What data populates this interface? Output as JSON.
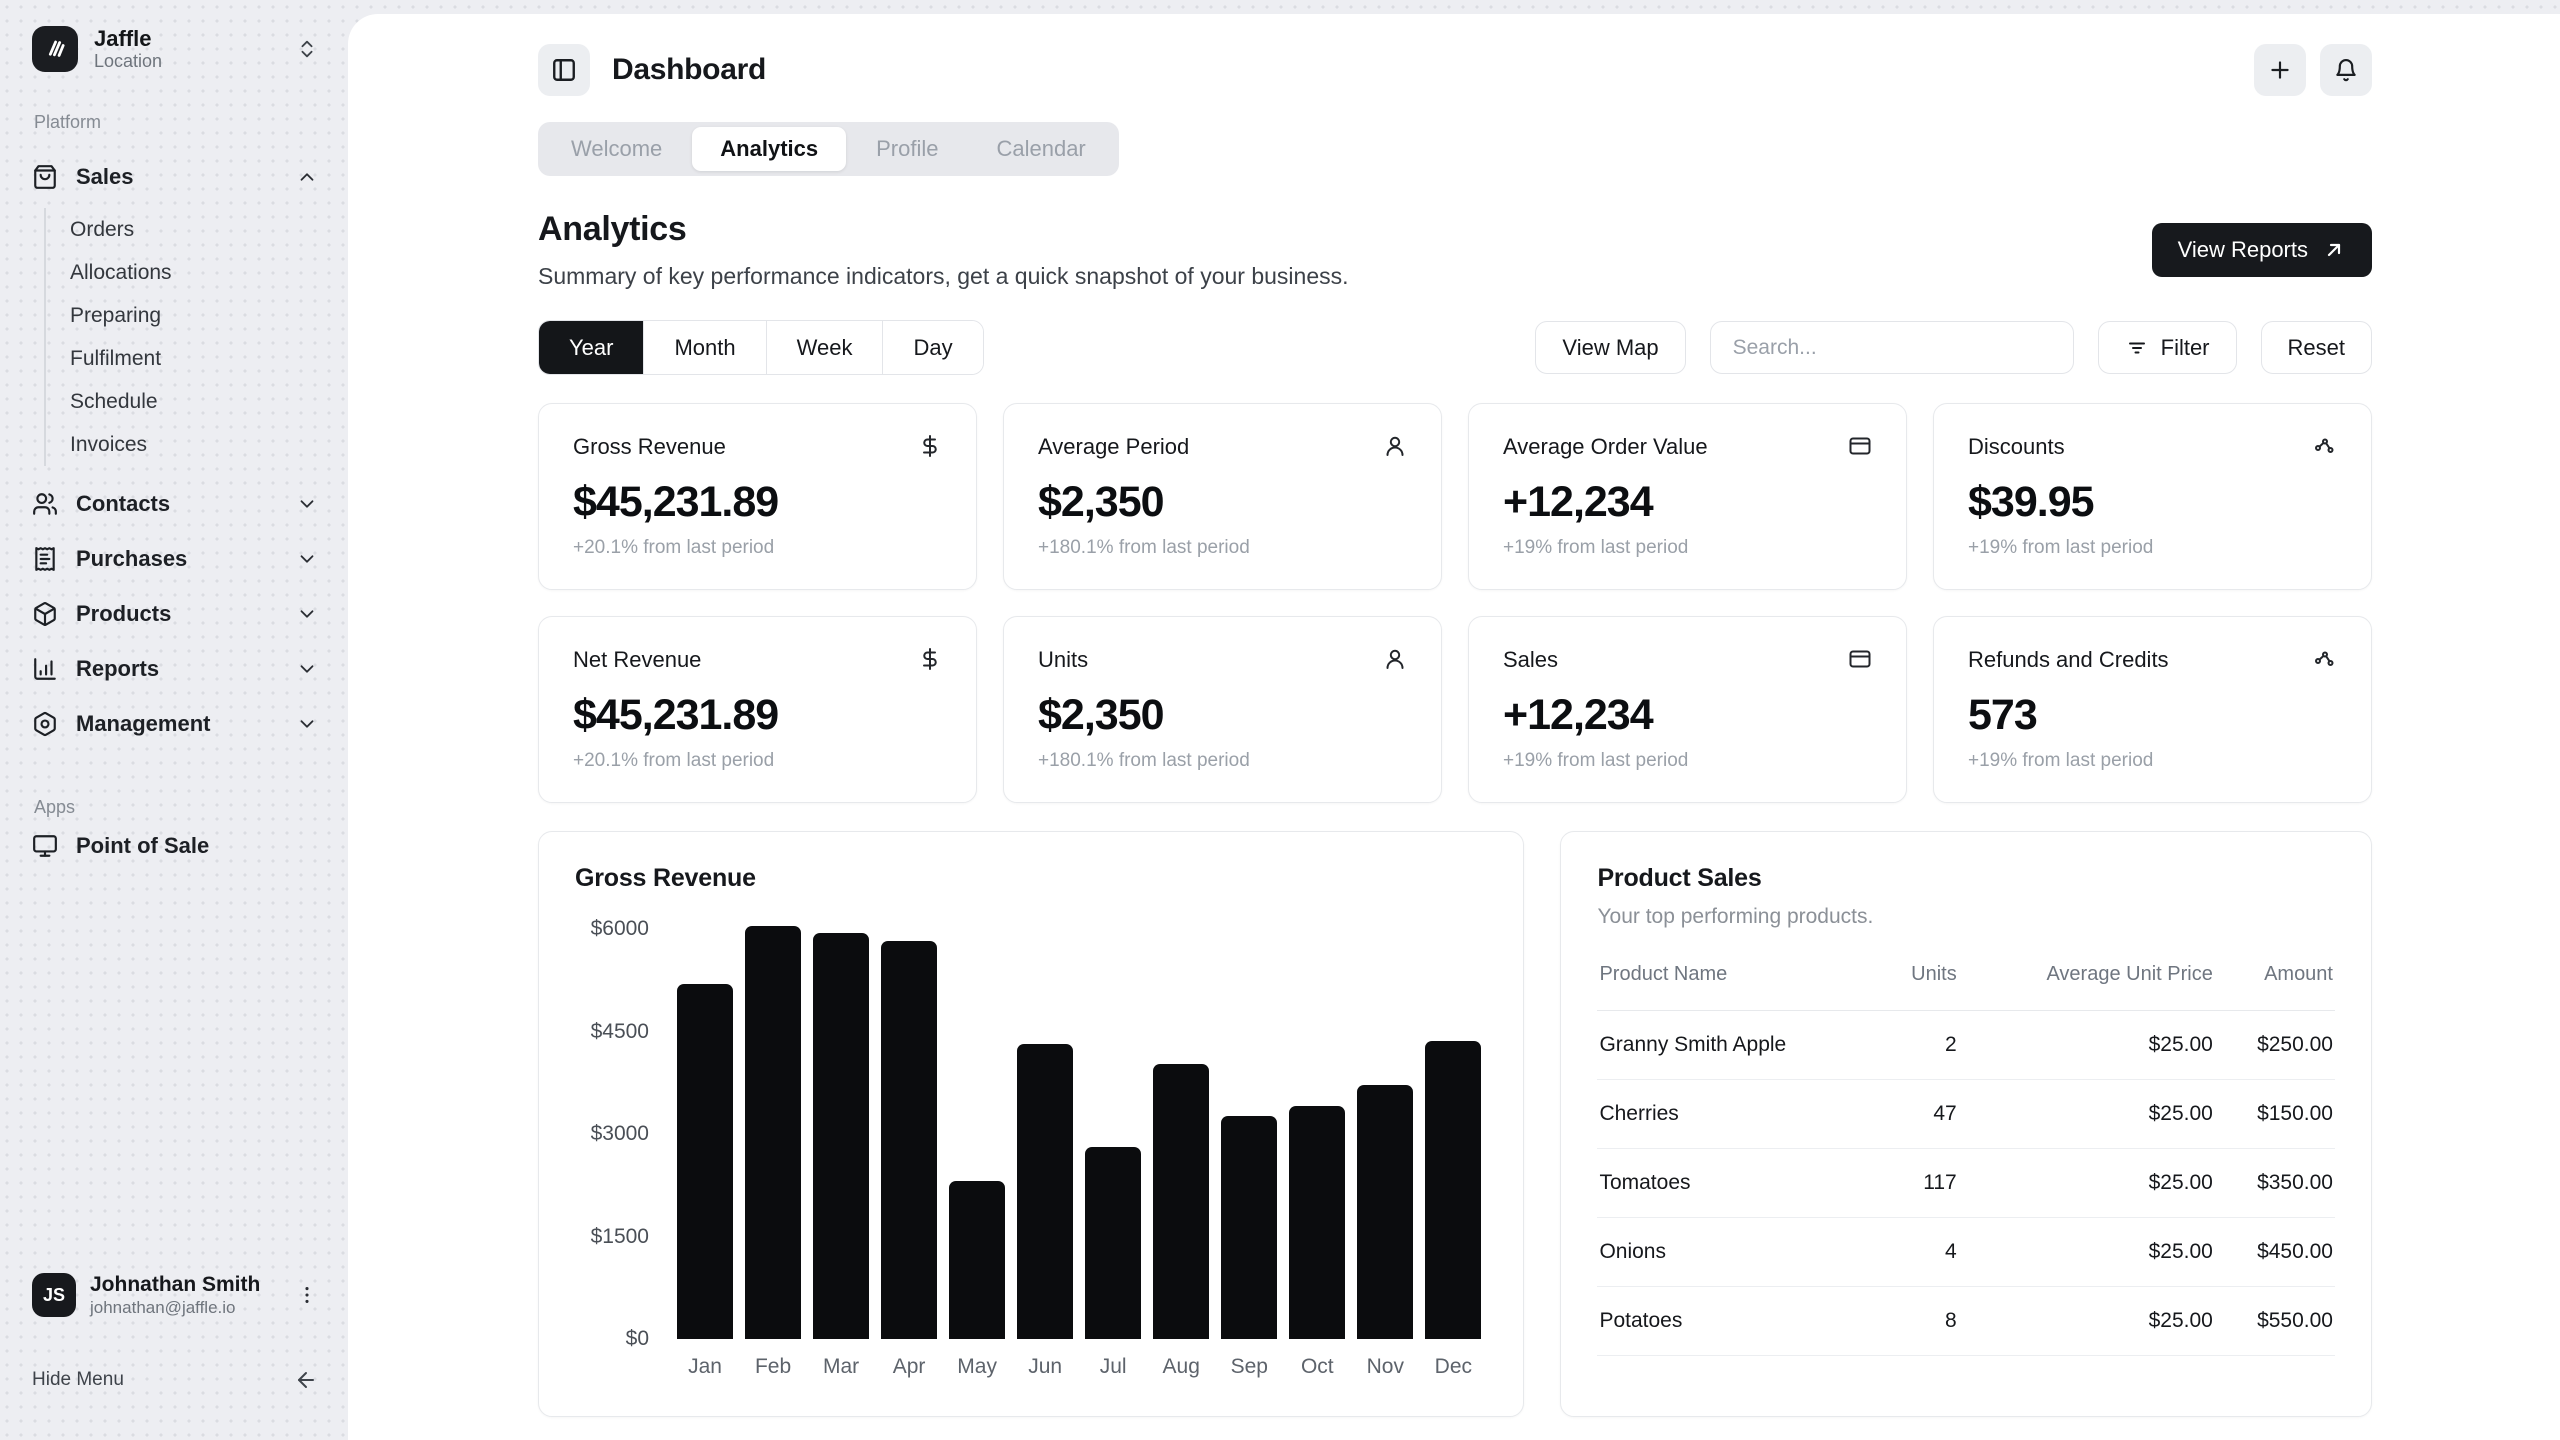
{
  "colors": {
    "accent": "#141619",
    "bar": "#0b0c0e",
    "muted": "#9aa0a8",
    "sidebar_bg": "#edeef2"
  },
  "sidebar": {
    "org": {
      "name": "Jaffle",
      "sub": "Location",
      "logo_icon": "jaffle-logo-icon",
      "switcher_icon": "chevrons-up-down-icon"
    },
    "platform_label": "Platform",
    "sales": {
      "label": "Sales",
      "icon": "shopping-bag-icon",
      "state_icon": "chevron-up-icon",
      "items": [
        "Orders",
        "Allocations",
        "Preparing",
        "Fulfilment",
        "Schedule",
        "Invoices"
      ]
    },
    "menu": [
      {
        "label": "Contacts",
        "icon": "users-icon"
      },
      {
        "label": "Purchases",
        "icon": "receipt-icon"
      },
      {
        "label": "Products",
        "icon": "package-icon"
      },
      {
        "label": "Reports",
        "icon": "chart-column-icon"
      },
      {
        "label": "Management",
        "icon": "cog-icon"
      }
    ],
    "apps_label": "Apps",
    "apps": [
      {
        "label": "Point of Sale",
        "icon": "monitor-icon"
      }
    ],
    "user": {
      "initials": "JS",
      "name": "Johnathan Smith",
      "email": "johnathan@jaffle.io",
      "menu_icon": "ellipsis-vertical-icon"
    },
    "hide_menu": "Hide Menu"
  },
  "header": {
    "title": "Dashboard",
    "toggle_icon": "panel-left-icon",
    "actions": [
      {
        "icon": "plus-icon"
      },
      {
        "icon": "bell-icon"
      }
    ],
    "tabs": [
      "Welcome",
      "Analytics",
      "Profile",
      "Calendar"
    ],
    "active_tab": "Analytics"
  },
  "analytics": {
    "title": "Analytics",
    "subtitle": "Summary of key performance indicators, get a quick snapshot of your business.",
    "view_reports_label": "View Reports",
    "view_reports_icon": "arrow-up-right-icon"
  },
  "filters": {
    "periods": [
      "Year",
      "Month",
      "Week",
      "Day"
    ],
    "active_period": "Year",
    "view_map_label": "View Map",
    "search_placeholder": "Search...",
    "filter_label": "Filter",
    "filter_icon": "filter-lines-icon",
    "reset_label": "Reset"
  },
  "kpis": [
    {
      "title": "Gross Revenue",
      "icon": "dollar-icon",
      "value": "$45,231.89",
      "change": "+20.1% from last period"
    },
    {
      "title": "Average Period",
      "icon": "user-round-icon",
      "value": "$2,350",
      "change": "+180.1% from last period"
    },
    {
      "title": "Average Order Value",
      "icon": "credit-card-icon",
      "value": "+12,234",
      "change": "+19% from last period"
    },
    {
      "title": "Discounts",
      "icon": "waypoints-icon",
      "value": "$39.95",
      "change": "+19% from last period"
    },
    {
      "title": "Net Revenue",
      "icon": "dollar-icon",
      "value": "$45,231.89",
      "change": "+20.1% from last period"
    },
    {
      "title": "Units",
      "icon": "user-round-icon",
      "value": "$2,350",
      "change": "+180.1% from last period"
    },
    {
      "title": "Sales",
      "icon": "credit-card-icon",
      "value": "+12,234",
      "change": "+19% from last period"
    },
    {
      "title": "Refunds and Credits",
      "icon": "waypoints-icon",
      "value": "573",
      "change": "+19% from last period"
    }
  ],
  "chart_data": {
    "type": "bar",
    "title": "Gross Revenue",
    "categories": [
      "Jan",
      "Feb",
      "Mar",
      "Apr",
      "May",
      "Jun",
      "Jul",
      "Aug",
      "Sep",
      "Oct",
      "Nov",
      "Dec"
    ],
    "values": [
      5200,
      6050,
      5940,
      5830,
      2310,
      4320,
      2810,
      4020,
      3270,
      3410,
      3720,
      4360
    ],
    "xlabel": "",
    "ylabel": "",
    "ylim": [
      0,
      6000
    ],
    "ytick_labels": [
      "$6000",
      "$4500",
      "$3000",
      "$1500",
      "$0"
    ],
    "grid": false,
    "legend": false,
    "bar_color": "#0b0c0e"
  },
  "product_sales": {
    "title": "Product Sales",
    "subtitle": "Your top performing products.",
    "columns": [
      "Product Name",
      "Units",
      "Average Unit Price",
      "Amount"
    ],
    "rows": [
      {
        "name": "Granny Smith Apple",
        "units": "2",
        "avg_price": "$25.00",
        "amount": "$250.00"
      },
      {
        "name": "Cherries",
        "units": "47",
        "avg_price": "$25.00",
        "amount": "$150.00"
      },
      {
        "name": "Tomatoes",
        "units": "117",
        "avg_price": "$25.00",
        "amount": "$350.00"
      },
      {
        "name": "Onions",
        "units": "4",
        "avg_price": "$25.00",
        "amount": "$450.00"
      },
      {
        "name": "Potatoes",
        "units": "8",
        "avg_price": "$25.00",
        "amount": "$550.00"
      }
    ]
  }
}
